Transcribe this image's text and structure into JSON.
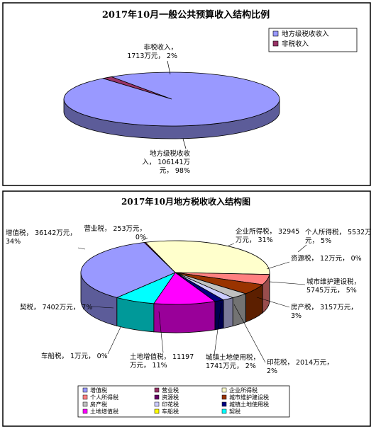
{
  "chart_data": [
    {
      "type": "pie",
      "title": "2017年10月一般公共预算收入结构比例",
      "slices": [
        {
          "name": "地方级税收收入",
          "value": 106141,
          "percent": 98,
          "color": "#9999ff",
          "label_lines": [
            "地方级税收收",
            "入， 106141万",
            "元， 98%"
          ]
        },
        {
          "name": "非税收入",
          "value": 1713,
          "percent": 2,
          "color": "#993366",
          "label_lines": [
            "非税收入，",
            "1713万元， 2%"
          ]
        }
      ],
      "legend_placement": "top-right"
    },
    {
      "type": "pie",
      "title": "2017年10月地方税收收入结构图",
      "slices": [
        {
          "name": "增值税",
          "value": 36142,
          "percent": 34,
          "color": "#9999ff",
          "label_lines": [
            "增值税， 36142万元，",
            "34%"
          ]
        },
        {
          "name": "营业税",
          "value": 253,
          "percent": 0,
          "color": "#993366",
          "label_lines": [
            "营业税， 253万元，",
            "0%"
          ]
        },
        {
          "name": "企业所得税",
          "value": 32945,
          "percent": 31,
          "color": "#ffffcc",
          "label_lines": [
            "企业所得税， 32945",
            "万元， 31%"
          ]
        },
        {
          "name": "个人所得税",
          "value": 5532,
          "percent": 5,
          "color": "#ff8080",
          "label_lines": [
            "个人所得税， 5532万",
            "元， 5%"
          ]
        },
        {
          "name": "资源税",
          "value": 12,
          "percent": 0,
          "color": "#660066",
          "label_lines": [
            "资源税， 12万元， 0%"
          ]
        },
        {
          "name": "城市维护建设税",
          "value": 5745,
          "percent": 5,
          "color": "#993300",
          "label_lines": [
            "城市维护建设税，",
            "5745万元， 5%"
          ]
        },
        {
          "name": "房产税",
          "value": 3157,
          "percent": 3,
          "color": "#c0c0c0",
          "label_lines": [
            "房产税， 3157万元，",
            "3%"
          ]
        },
        {
          "name": "印花税",
          "value": 2014,
          "percent": 2,
          "color": "#ccccff",
          "label_lines": [
            "印花税， 2014万元，",
            "2%"
          ]
        },
        {
          "name": "城镇土地使用税",
          "value": 1741,
          "percent": 2,
          "color": "#000080",
          "label_lines": [
            "城镇土地使用税，",
            "1741万元， 2%"
          ]
        },
        {
          "name": "土地增值税",
          "value": 11197,
          "percent": 11,
          "color": "#ff00ff",
          "label_lines": [
            "土地增值税， 11197",
            "万元， 11%"
          ]
        },
        {
          "name": "车船税",
          "value": 1,
          "percent": 0,
          "color": "#ffff00",
          "label_lines": [
            "车船税， 1万元， 0%"
          ]
        },
        {
          "name": "契税",
          "value": 7402,
          "percent": 7,
          "color": "#00ffff",
          "label_lines": [
            "契税， 7402万元， 7%"
          ]
        }
      ],
      "legend_placement": "bottom"
    }
  ]
}
